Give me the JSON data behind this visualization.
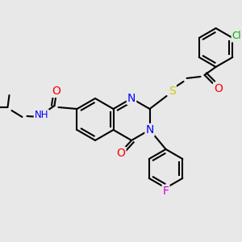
{
  "bg_color": "#e8e8e8",
  "bond_color": "#000000",
  "bond_width": 1.5,
  "atom_colors": {
    "N": "#0000ff",
    "O": "#ff0000",
    "S": "#cccc00",
    "Cl": "#00aa00",
    "F": "#cc00cc",
    "C": "#000000",
    "H": "#000000"
  },
  "font_size": 9,
  "fig_size": [
    3.0,
    3.0
  ],
  "dpi": 100
}
